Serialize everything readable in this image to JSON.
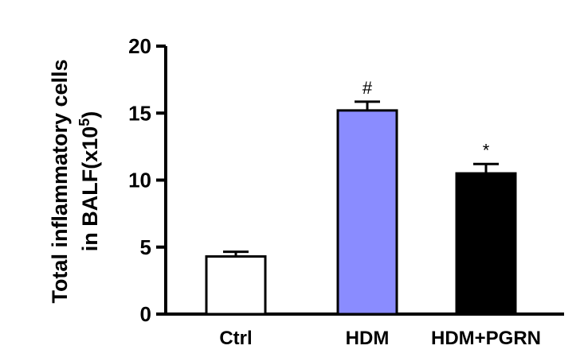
{
  "chart_data": {
    "type": "bar",
    "categories": [
      "Ctrl",
      "HDM",
      "HDM+PGRN"
    ],
    "values": [
      4.3,
      15.2,
      10.5
    ],
    "errors": [
      0.35,
      0.65,
      0.7
    ],
    "annotations": [
      "",
      "#",
      "*"
    ],
    "bar_colors": [
      "#ffffff",
      "#8a8cff",
      "#000000"
    ],
    "ylabel_line1": "Total inflammatory cells",
    "ylabel_line2": "in BALF(x10",
    "ylabel_sup": "5",
    "ylabel_close": ")",
    "ylim": [
      0,
      20
    ],
    "yticks": [
      "0",
      "5",
      "10",
      "15",
      "20"
    ],
    "ytick_values": [
      0,
      5,
      10,
      15,
      20
    ],
    "grid": false
  }
}
